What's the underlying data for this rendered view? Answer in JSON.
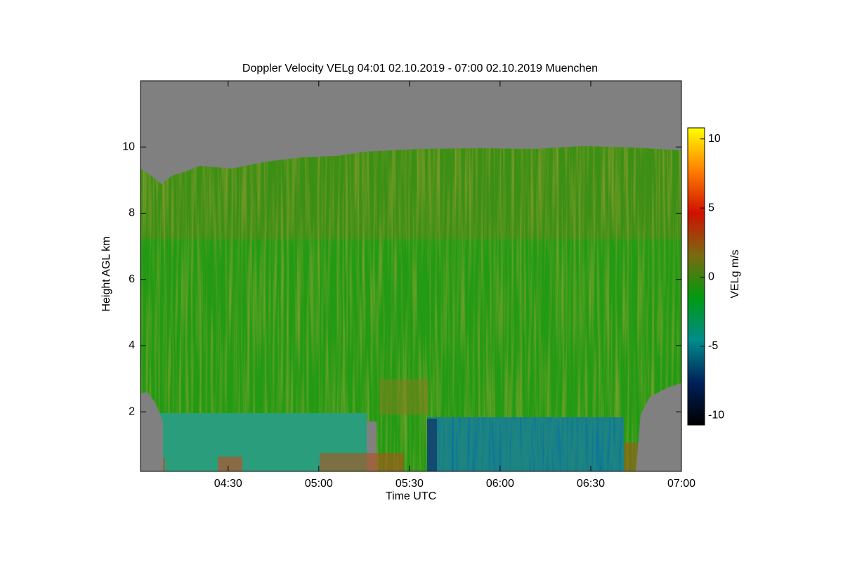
{
  "chart_data": {
    "type": "heatmap",
    "title": "Doppler Velocity VELg   04:01 02.10.2019 - 07:00 02.10.2019 Muenchen",
    "x_label": "Time UTC",
    "y_label": "Height AGL km",
    "xlim": [
      241,
      420
    ],
    "xticks": [
      {
        "value": 270,
        "label": "04:30"
      },
      {
        "value": 300,
        "label": "05:00"
      },
      {
        "value": 330,
        "label": "05:30"
      },
      {
        "value": 360,
        "label": "06:00"
      },
      {
        "value": 390,
        "label": "06:30"
      },
      {
        "value": 420,
        "label": "07:00"
      }
    ],
    "ylim": [
      0.2,
      12
    ],
    "yticks": [
      2,
      4,
      6,
      8,
      10
    ],
    "colorbar": {
      "label": "VELg m/s",
      "lim": [
        -10.7,
        10.8
      ],
      "ticks": [
        -10,
        -5,
        0,
        5,
        10
      ],
      "colormap": [
        "#000000",
        "#00205a",
        "#008c8c",
        "#009a10",
        "#7a6a10",
        "#d01000",
        "#ff8000",
        "#ffff00"
      ]
    }
  }
}
